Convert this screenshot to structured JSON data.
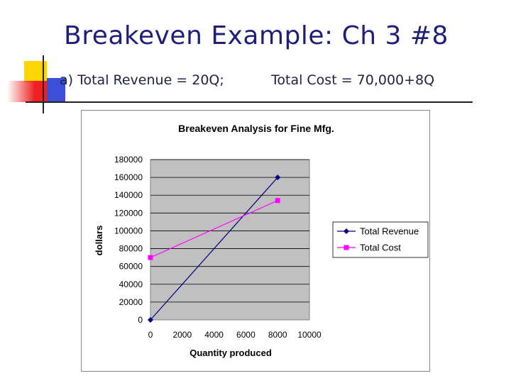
{
  "slide": {
    "title": "Breakeven Example: Ch 3 #8",
    "line_a": "a) Total Revenue = 20Q;",
    "line_b": "Total Cost = 70,000+8Q"
  },
  "colors": {
    "title": "#1f1f7a",
    "revenue": "#000080",
    "cost": "#ff00ff",
    "plot_bg": "#c0c0c0",
    "deco_yellow": "#ffd400",
    "deco_blue": "#3b4fd8",
    "deco_red": "#ee2020"
  },
  "chart_data": {
    "type": "line",
    "title": "Breakeven Analysis for Fine Mfg.",
    "xlabel": "Quantity produced",
    "ylabel": "dollars",
    "xlim": [
      0,
      10000
    ],
    "ylim": [
      0,
      180000
    ],
    "x_ticks": [
      0,
      2000,
      4000,
      6000,
      8000,
      10000
    ],
    "y_ticks": [
      0,
      20000,
      40000,
      60000,
      80000,
      100000,
      120000,
      140000,
      160000,
      180000
    ],
    "grid": true,
    "legend": "right",
    "series": [
      {
        "name": "Total Revenue",
        "x": [
          0,
          8000
        ],
        "y": [
          0,
          160000
        ],
        "marker": "diamond"
      },
      {
        "name": "Total Cost",
        "x": [
          0,
          8000
        ],
        "y": [
          70000,
          134000
        ],
        "marker": "square"
      }
    ]
  }
}
